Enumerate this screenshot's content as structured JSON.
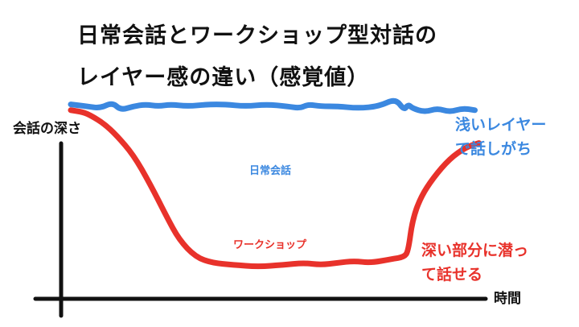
{
  "title_lines": [
    "日常会話とワークショップ型対話の",
    "レイヤー感の違い（感覚値）"
  ],
  "chart_data": {
    "type": "line",
    "title": "日常会話とワークショップ型対話のレイヤー感の違い（感覚値）",
    "xlabel": "時間",
    "ylabel": "会話の深さ",
    "xlim": [
      0,
      100
    ],
    "ylim": [
      0,
      100
    ],
    "y_direction": "depth increases downward",
    "grid": false,
    "series": [
      {
        "name": "日常会話",
        "color": "#3b88e0",
        "x": [
          0,
          4,
          7,
          10,
          12,
          15,
          18,
          21,
          24,
          28,
          33,
          37,
          42,
          47,
          52,
          55,
          57,
          60,
          64,
          69,
          74,
          78,
          80,
          81,
          82,
          85,
          88,
          91,
          94,
          97
        ],
        "y": [
          96,
          95,
          94,
          97,
          93,
          95,
          96,
          95,
          96,
          95,
          96,
          96,
          95,
          96,
          95,
          94,
          96,
          95,
          95,
          94,
          95,
          99,
          93,
          96,
          94,
          92,
          94,
          92,
          94,
          93
        ]
      },
      {
        "name": "ワークショップ",
        "color": "#e8322b",
        "x": [
          0,
          3,
          5,
          8,
          11,
          15,
          19,
          23,
          26,
          30,
          34,
          39,
          45,
          51,
          56,
          60,
          64,
          68,
          72,
          77,
          80,
          81,
          82,
          84,
          87,
          91,
          95,
          98
        ],
        "y": [
          93,
          92,
          90,
          86,
          80,
          70,
          55,
          38,
          26,
          17,
          14,
          13,
          12,
          13,
          14,
          13,
          14,
          15,
          14,
          16,
          17,
          20,
          36,
          48,
          58,
          68,
          74,
          76
        ]
      }
    ],
    "annotations": [
      {
        "series": "日常会話",
        "lines": [
          "浅いレイヤー",
          "で話しがち"
        ]
      },
      {
        "series": "ワークショップ",
        "lines": [
          "深い部分に潜っ",
          "て話せる"
        ]
      }
    ]
  }
}
